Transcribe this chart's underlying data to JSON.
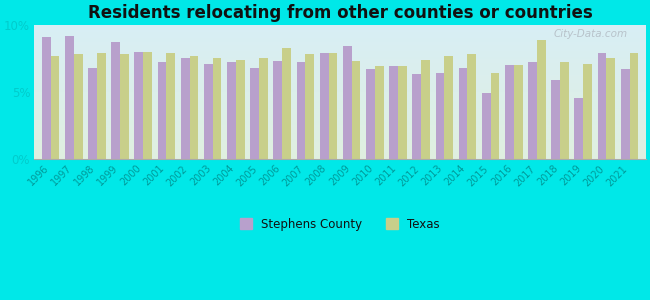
{
  "title": "Residents relocating from other counties or countries",
  "years": [
    1996,
    1997,
    1998,
    1999,
    2000,
    2001,
    2002,
    2003,
    2004,
    2005,
    2006,
    2007,
    2008,
    2009,
    2010,
    2011,
    2012,
    2013,
    2014,
    2015,
    2016,
    2017,
    2018,
    2019,
    2020,
    2021
  ],
  "stephens_county": [
    9.1,
    9.2,
    6.8,
    8.7,
    8.0,
    7.2,
    7.5,
    7.1,
    7.2,
    6.8,
    7.3,
    7.2,
    7.9,
    8.4,
    6.7,
    6.9,
    6.3,
    6.4,
    6.8,
    4.9,
    7.0,
    7.2,
    5.9,
    4.5,
    7.9,
    6.7
  ],
  "texas": [
    7.7,
    7.8,
    7.9,
    7.8,
    8.0,
    7.9,
    7.7,
    7.5,
    7.4,
    7.5,
    8.3,
    7.8,
    7.9,
    7.3,
    6.9,
    6.9,
    7.4,
    7.7,
    7.8,
    6.4,
    7.0,
    8.9,
    7.2,
    7.1,
    7.5,
    7.9
  ],
  "stephens_color": "#b8a0cc",
  "texas_color": "#c8cf8a",
  "plot_bg_top": "#d8eef5",
  "plot_bg_bottom": "#e0f0e0",
  "outer_background": "#00e8e8",
  "ylim": [
    0,
    10
  ],
  "yticks": [
    0,
    5,
    10
  ],
  "ytick_labels": [
    "0%",
    "5%",
    "10%"
  ],
  "bar_width": 0.38,
  "title_fontsize": 12,
  "legend_stephens": "Stephens County",
  "legend_texas": "Texas"
}
